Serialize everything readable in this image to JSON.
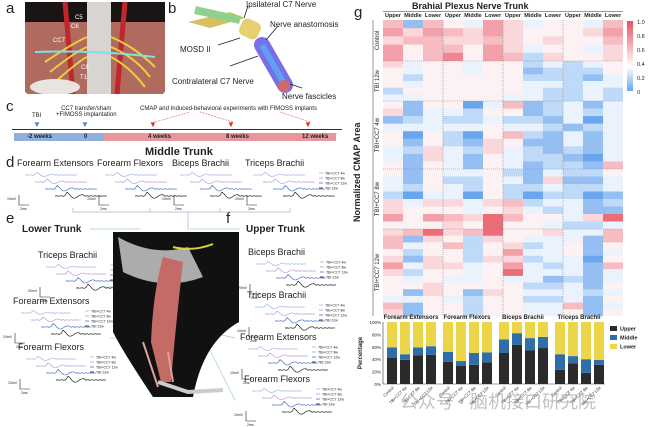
{
  "panels": {
    "a": "a",
    "b": "b",
    "c": "c",
    "d": "d",
    "e": "e",
    "f": "f",
    "g": "g"
  },
  "panel_a": {
    "labels": [
      "C5",
      "C6",
      "CC7",
      "C8",
      "T1"
    ]
  },
  "panel_b": {
    "labels": {
      "ipsi": "Ipsilateral C7 Nerve",
      "anast": "Nerve anastomosis",
      "mosd": "MOSD II",
      "contra": "Contralateral C7 Nerve",
      "fasc": "Nerve fascicles"
    }
  },
  "panel_c": {
    "events": {
      "tbi": "TBI",
      "cc7": "CC7 transfer/sham\n+FIMOSS implantation",
      "cmap": "CMAP and Induced-behavioral experiments with FIMOSS implants"
    },
    "ticks": [
      "-2 weeks",
      "0",
      "4 weeks",
      "8 weeks",
      "12 weeks"
    ],
    "colors": {
      "pre": "#8fb0dd",
      "post": "#e9959c",
      "marker_blue": "#4f7fc6",
      "marker_red": "#e03030"
    }
  },
  "panel_d": {
    "title": "Middle Trunk",
    "muscles": [
      "Forearm Extensors",
      "Forearm Flexors",
      "Biceps Brachii",
      "Triceps Brachii"
    ],
    "scales": [
      "10mV",
      "10mV",
      "10mV",
      "20mV"
    ],
    "time_scale": "2ms"
  },
  "panel_e": {
    "title": "Lower Trunk",
    "muscles": [
      "Triceps Brachii",
      "Forearm Extensors",
      "Forearm Flexors"
    ],
    "scales": [
      "20mV",
      "10mV",
      "10mV"
    ]
  },
  "panel_f": {
    "title": "Upper Trunk",
    "muscles": [
      "Biceps Brachii",
      "Triceps Brachii",
      "Forearm Extensors",
      "Forearm Flexors"
    ],
    "scales": [
      "20mV",
      "10mV",
      "10mV",
      "10mV"
    ]
  },
  "trace_legend": [
    "TBI+CC7 4w",
    "TBI+CC7 8w",
    "TBI+CC7 12w",
    "TBI 12w"
  ],
  "trace_colors": [
    "#9fb6e8",
    "#b89ad8",
    "#4b6fc4",
    "#222222"
  ],
  "time_scale": "2ms",
  "watermark": "公众号 · 脑机接口研究院",
  "chart_data": [
    {
      "type": "heatmap",
      "title": "Brahial Plexus Nerve Trunk",
      "ylabel": "Normalized CMAP Area",
      "muscles": [
        "Forearm Extensors",
        "Forearm Flexors",
        "Biceps Brachii",
        "Triceps Brachii"
      ],
      "columns": [
        "Upper",
        "Middle",
        "Lower",
        "Upper",
        "Middle",
        "Lower",
        "Upper",
        "Middle",
        "Lower",
        "Upper",
        "Middle",
        "Lower"
      ],
      "colorbar": {
        "ticks": [
          "1.0",
          "0.8",
          "0.6",
          "0.4",
          "0.2",
          "0"
        ],
        "range": [
          0,
          1
        ],
        "low": "#6aa6ee",
        "mid": "#ffffff",
        "high": "#e8515f"
      },
      "groups": [
        {
          "label": "Control",
          "rows": [
            [
              0.6,
              0.1,
              0.6,
              0.4,
              0.3,
              0.7,
              0.5,
              0.3,
              0.4,
              0.4,
              0.3,
              0.6
            ],
            [
              0.7,
              0.5,
              0.7,
              0.6,
              0.5,
              0.7,
              0.5,
              0.4,
              0.4,
              0.4,
              0.5,
              0.7
            ],
            [
              0.5,
              0.6,
              0.6,
              0.5,
              0.5,
              0.6,
              0.5,
              0.4,
              0.5,
              0.4,
              0.4,
              0.6
            ],
            [
              0.7,
              0.4,
              0.6,
              0.6,
              0.4,
              0.7,
              0.5,
              0.3,
              0.4,
              0.4,
              0.3,
              0.5
            ],
            [
              0.7,
              0.4,
              0.6,
              0.8,
              0.4,
              0.7,
              0.6,
              0.2,
              0.5,
              0.4,
              0.4,
              0.5
            ]
          ]
        },
        {
          "label": "TBI 12w",
          "rows": [
            [
              0.5,
              0.3,
              0.4,
              0.4,
              0.3,
              0.4,
              0.4,
              0.2,
              0.3,
              0.2,
              0.3,
              0.4
            ],
            [
              0.4,
              0.3,
              0.4,
              0.4,
              0.3,
              0.4,
              0.4,
              0.1,
              0.2,
              0.2,
              0.2,
              0.4
            ],
            [
              0.4,
              0.2,
              0.4,
              0.4,
              0.4,
              0.4,
              0.4,
              0.2,
              0.2,
              0.2,
              0.1,
              0.3
            ],
            [
              0.4,
              0.3,
              0.4,
              0.4,
              0.4,
              0.4,
              0.4,
              0.3,
              0.3,
              0.2,
              0.3,
              0.3
            ],
            [
              0.2,
              0.4,
              0.4,
              0.4,
              0.4,
              0.4,
              0.4,
              0.3,
              0.2,
              0.2,
              0.3,
              0.2
            ],
            [
              0.3,
              0.3,
              0.4,
              0.4,
              0.4,
              0.4,
              0.3,
              0.3,
              0.2,
              0.2,
              0.3,
              0.2
            ]
          ]
        },
        {
          "label": "TBI+CC7 4w",
          "rows": [
            [
              0.4,
              0.1,
              0.4,
              0.4,
              0.0,
              0.3,
              0.6,
              0.1,
              0.2,
              0.3,
              0.1,
              0.3
            ],
            [
              0.5,
              0.1,
              0.3,
              0.3,
              0.2,
              0.4,
              0.4,
              0.1,
              0.2,
              0.3,
              0.2,
              0.3
            ],
            [
              0.1,
              0.2,
              0.3,
              0.2,
              0.2,
              0.3,
              0.2,
              0.2,
              0.1,
              0.3,
              0.0,
              0.3
            ],
            [
              0.3,
              0.3,
              0.3,
              0.3,
              0.3,
              0.4,
              0.3,
              0.3,
              0.2,
              0.1,
              0.2,
              0.3
            ],
            [
              0.4,
              0.0,
              0.4,
              0.2,
              0.0,
              0.4,
              0.6,
              0.2,
              0.1,
              0.3,
              0.1,
              0.3
            ],
            [
              0.4,
              0.1,
              0.4,
              0.2,
              0.1,
              0.5,
              0.4,
              0.1,
              0.1,
              0.3,
              0.1,
              0.3
            ],
            [
              0.3,
              0.2,
              0.5,
              0.3,
              0.2,
              0.5,
              0.3,
              0.2,
              0.1,
              0.2,
              0.1,
              0.3
            ],
            [
              0.3,
              0.1,
              0.5,
              0.3,
              0.1,
              0.4,
              0.3,
              0.2,
              0.2,
              0.1,
              0.0,
              0.3
            ],
            [
              0.4,
              0.1,
              0.4,
              0.3,
              0.1,
              0.4,
              0.3,
              0.1,
              0.2,
              0.2,
              0.1,
              0.6
            ]
          ]
        },
        {
          "label": "TBI+CC7 8w",
          "rows": [
            [
              0.4,
              0.1,
              0.4,
              0.3,
              0.3,
              0.4,
              0.2,
              0.1,
              0.3,
              0.2,
              0.2,
              0.4
            ],
            [
              0.3,
              0.1,
              0.4,
              0.2,
              0.2,
              0.4,
              0.3,
              0.1,
              0.5,
              0.1,
              0.1,
              0.3
            ],
            [
              0.3,
              0.2,
              0.4,
              0.3,
              0.2,
              0.4,
              0.2,
              0.2,
              0.3,
              0.2,
              0.2,
              0.3
            ],
            [
              0.2,
              0.0,
              0.3,
              0.3,
              0.0,
              0.4,
              0.2,
              0.0,
              0.2,
              0.2,
              0.0,
              0.1
            ],
            [
              0.5,
              0.3,
              0.5,
              0.5,
              0.3,
              0.5,
              0.6,
              0.2,
              0.3,
              0.3,
              0.1,
              0.2
            ],
            [
              0.5,
              0.4,
              0.4,
              0.4,
              0.3,
              0.4,
              0.5,
              0.3,
              0.2,
              0.3,
              0.1,
              0.1
            ],
            [
              0.7,
              0.4,
              0.7,
              0.6,
              0.5,
              0.9,
              0.6,
              0.4,
              0.4,
              0.3,
              0.5,
              0.9
            ],
            [
              0.4,
              0.4,
              0.4,
              0.5,
              0.4,
              0.9,
              0.4,
              0.4,
              0.3,
              0.2,
              0.2,
              0.3
            ]
          ]
        },
        {
          "label": "TBI+CC7 12w",
          "rows": [
            [
              0.5,
              0.6,
              0.9,
              0.5,
              0.6,
              0.9,
              0.4,
              0.4,
              0.5,
              0.3,
              0.3,
              0.6
            ],
            [
              0.6,
              0.1,
              0.5,
              0.4,
              0.2,
              0.5,
              0.4,
              0.3,
              0.3,
              0.3,
              0.1,
              0.6
            ],
            [
              0.6,
              0.3,
              0.4,
              0.6,
              0.2,
              0.4,
              0.5,
              0.2,
              0.3,
              0.4,
              0.1,
              0.4
            ],
            [
              0.4,
              0.2,
              0.4,
              0.4,
              0.2,
              0.4,
              0.7,
              0.3,
              0.3,
              0.4,
              0.1,
              0.3
            ],
            [
              0.5,
              0.1,
              0.5,
              0.4,
              0.2,
              0.5,
              0.5,
              0.2,
              0.3,
              0.3,
              0.0,
              0.4
            ],
            [
              0.7,
              0.3,
              0.5,
              0.5,
              0.3,
              0.4,
              0.7,
              0.3,
              0.2,
              0.3,
              0.1,
              0.6
            ],
            [
              0.5,
              0.2,
              0.4,
              0.4,
              0.3,
              0.4,
              0.9,
              0.3,
              0.3,
              0.3,
              0.1,
              0.3
            ],
            [
              0.4,
              0.3,
              0.4,
              0.3,
              0.3,
              0.4,
              0.3,
              0.3,
              0.1,
              0.2,
              0.1,
              0.3
            ],
            [
              0.4,
              0.4,
              0.5,
              0.4,
              0.4,
              0.4,
              0.4,
              0.2,
              0.2,
              0.3,
              0.1,
              0.4
            ],
            [
              0.4,
              0.1,
              0.5,
              0.4,
              0.1,
              0.5,
              0.4,
              0.3,
              0.3,
              0.3,
              0.2,
              0.3
            ],
            [
              0.3,
              0.3,
              0.4,
              0.3,
              0.2,
              0.4,
              0.4,
              0.2,
              0.2,
              0.3,
              0.1,
              0.4
            ],
            [
              0.6,
              0.1,
              0.4,
              0.4,
              0.2,
              0.4,
              0.4,
              0.3,
              0.3,
              0.6,
              0.1,
              0.3
            ],
            [
              0.5,
              0.1,
              0.4,
              0.4,
              0.2,
              0.4,
              0.4,
              0.3,
              0.3,
              0.4,
              0.1,
              0.4
            ]
          ]
        }
      ]
    },
    {
      "type": "bar",
      "stacked": true,
      "ylabel": "Percentage",
      "yticks": [
        "0%",
        "20%",
        "40%",
        "60%",
        "80%",
        "100%"
      ],
      "ylim": [
        0,
        100
      ],
      "groups": [
        "Forearm Extensors",
        "Forearm Flexors",
        "Biceps Brachii",
        "Triceps Brachii"
      ],
      "categories": [
        "Control",
        "TBI+CC7 4w",
        "TBI+CC7 8w",
        "TBI+CC7 12w"
      ],
      "series": [
        {
          "name": "Upper",
          "color": "#2b2b2b",
          "values": [
            [
              42,
              39,
              46,
              47
            ],
            [
              36,
              29,
              31,
              35
            ],
            [
              50,
              63,
              54,
              58
            ],
            [
              23,
              33,
              18,
              31
            ]
          ]
        },
        {
          "name": "Middle",
          "color": "#2f6ea8",
          "values": [
            [
              17,
              9,
              13,
              14
            ],
            [
              16,
              8,
              19,
              16
            ],
            [
              22,
              19,
              20,
              18
            ],
            [
              25,
              12,
              22,
              8
            ]
          ]
        },
        {
          "name": "Lower",
          "color": "#edd54a",
          "values": [
            [
              41,
              52,
              41,
              39
            ],
            [
              48,
              63,
              50,
              49
            ],
            [
              28,
              18,
              26,
              24
            ],
            [
              52,
              55,
              60,
              61
            ]
          ]
        }
      ],
      "legend": "right"
    }
  ]
}
